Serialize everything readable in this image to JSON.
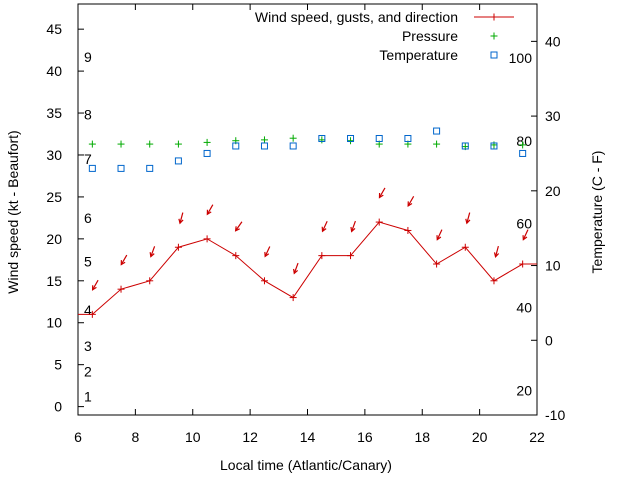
{
  "chart_data": {
    "type": "line",
    "xlabel": "Local time (Atlantic/Canary)",
    "ylabel": "Wind speed (kt - Beaufort)",
    "y2label": "Temperature (C - F)",
    "xlim": [
      6,
      22
    ],
    "ylim": [
      -1,
      48
    ],
    "y2lim": [
      -10,
      45
    ],
    "x_ticks": [
      "6",
      "8",
      "10",
      "12",
      "14",
      "16",
      "18",
      "20",
      "22"
    ],
    "y_ticks": [
      "0",
      "5",
      "10",
      "15",
      "20",
      "25",
      "30",
      "35",
      "40",
      "45"
    ],
    "y2_ticks": [
      "-10",
      "0",
      "10",
      "20",
      "30",
      "40"
    ],
    "beaufort_labels": [
      {
        "label": "1",
        "y": 1.2
      },
      {
        "label": "2",
        "y": 4.2
      },
      {
        "label": "3",
        "y": 7.2
      },
      {
        "label": "4",
        "y": 11.5
      },
      {
        "label": "5",
        "y": 17.3
      },
      {
        "label": "6",
        "y": 22.5
      },
      {
        "label": "7",
        "y": 29.5
      },
      {
        "label": "8",
        "y": 34.8
      },
      {
        "label": "9",
        "y": 41.7
      }
    ],
    "fahrenheit_labels": [
      {
        "label": "20",
        "y2": -6.7
      },
      {
        "label": "40",
        "y2": 4.4
      },
      {
        "label": "60",
        "y2": 15.6
      },
      {
        "label": "80",
        "y2": 26.7
      },
      {
        "label": "100",
        "y2": 37.8
      }
    ],
    "series": [
      {
        "name": "Wind speed, gusts, and direction",
        "color": "#cc0000",
        "x": [
          6.5,
          7.5,
          8.5,
          9.5,
          10.5,
          11.5,
          12.5,
          13.5,
          14.5,
          15.5,
          16.5,
          17.5,
          18.5,
          19.5,
          20.5,
          21.5
        ],
        "values": [
          11,
          14,
          15,
          19,
          20,
          18,
          15,
          13,
          18,
          18,
          22,
          21,
          17,
          19,
          15,
          17
        ],
        "direction_arrow_y": [
          14.5,
          17.5,
          18.5,
          22.5,
          23.5,
          21.5,
          18.5,
          16.5,
          21.5,
          21.5,
          25.5,
          24.5,
          20.5,
          22.5,
          18.5,
          20.5
        ],
        "direction_deg": [
          30,
          30,
          20,
          15,
          30,
          35,
          25,
          20,
          25,
          20,
          30,
          30,
          25,
          15,
          15,
          25
        ]
      },
      {
        "name": "Pressure",
        "color": "#00aa00",
        "x": [
          6.5,
          7.5,
          8.5,
          9.5,
          10.5,
          11.5,
          12.5,
          13.5,
          14.5,
          15.5,
          16.5,
          17.5,
          18.5,
          19.5,
          20.5,
          21.5
        ],
        "values": [
          31.3,
          31.3,
          31.3,
          31.3,
          31.5,
          31.7,
          31.8,
          32.0,
          31.8,
          31.7,
          31.3,
          31.3,
          31.3,
          31.0,
          31.2,
          31.2
        ]
      },
      {
        "name": "Temperature",
        "color": "#0066cc",
        "x": [
          6.5,
          7.5,
          8.5,
          9.5,
          10.5,
          11.5,
          12.5,
          13.5,
          14.5,
          15.5,
          16.5,
          17.5,
          18.5,
          19.5,
          20.5,
          21.5
        ],
        "values": [
          23,
          23,
          23,
          24,
          25,
          26,
          26,
          26,
          27,
          27,
          27,
          27,
          28,
          26,
          26,
          25
        ]
      }
    ]
  }
}
